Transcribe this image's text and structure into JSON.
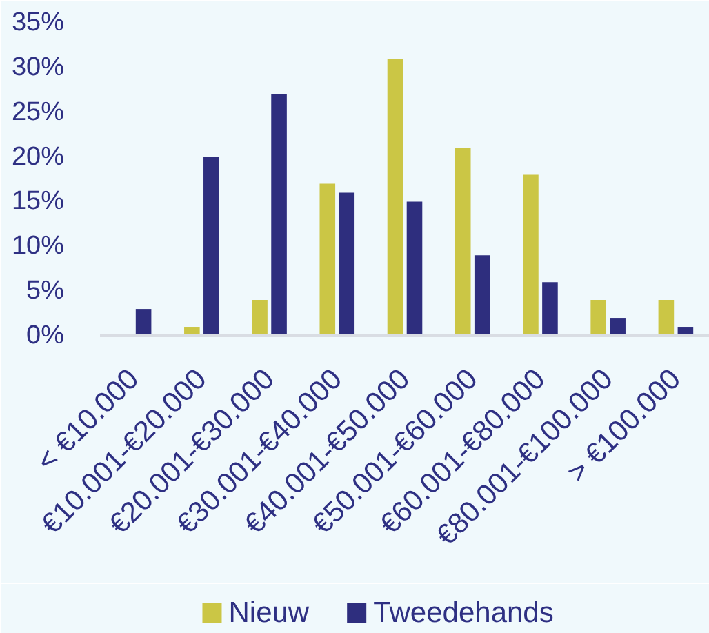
{
  "chart_data": {
    "type": "bar",
    "categories": [
      "< €10.000",
      "€10.001-€20.000",
      "€20.001-€30.000",
      "€30.001-€40.000",
      "€40.001-€50.000",
      "€50.001-€60.000",
      "€60.001-€80.000",
      "€80.001-€100.000",
      "> €100.000"
    ],
    "series": [
      {
        "name": "Nieuw",
        "color": "#cbc645",
        "values": [
          0,
          1,
          4,
          17,
          31,
          21,
          18,
          4,
          4
        ]
      },
      {
        "name": "Tweedehands",
        "color": "#2e2e7e",
        "values": [
          3,
          20,
          27,
          16,
          15,
          9,
          6,
          2,
          1
        ]
      }
    ],
    "ylim": [
      0,
      35
    ],
    "yticks": [
      {
        "value": 0,
        "label": "0%"
      },
      {
        "value": 5,
        "label": "5%"
      },
      {
        "value": 10,
        "label": "10%"
      },
      {
        "value": 15,
        "label": "15%"
      },
      {
        "value": 20,
        "label": "20%"
      },
      {
        "value": 25,
        "label": "25%"
      },
      {
        "value": 30,
        "label": "30%"
      },
      {
        "value": 35,
        "label": "35%"
      }
    ],
    "legend": "bottom"
  }
}
